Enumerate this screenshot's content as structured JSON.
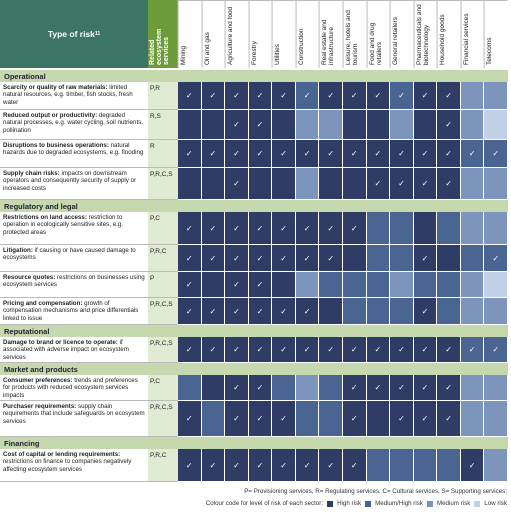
{
  "header": {
    "title": "Type of risk",
    "note": "11",
    "services": "Related ecosystem services",
    "sectors": [
      "Mining",
      "Oil and gas",
      "Agriculture and food",
      "Forestry",
      "Utilities",
      "Construction",
      "Real estate and infrastructure",
      "Leisure, hotels and tourism",
      "Food and drug retailers",
      "General retailers",
      "Pharmaceuticals and biotechnology",
      "Household goods",
      "Financial services",
      "Telecoms"
    ]
  },
  "sections": [
    {
      "name": "Operational",
      "rows": [
        {
          "title": "Scarcity or quality of raw materials:",
          "text": " limited natural resources, e.g. timber, fish stocks, fresh water",
          "services": "P,R",
          "colors": [
            "#2e3c66",
            "#2e3c66",
            "#2e3c66",
            "#2e3c66",
            "#2e3c66",
            "#4b6592",
            "#2e3c66",
            "#2e3c66",
            "#2e3c66",
            "#4b6592",
            "#2e3c66",
            "#2e3c66",
            "#7d95bc",
            "#7d95bc"
          ],
          "checks": [
            "✓",
            "✓",
            "✓",
            "✓",
            "✓",
            "✓",
            "✓",
            "✓",
            "✓",
            "✓",
            "✓",
            "✓",
            null,
            null
          ]
        },
        {
          "title": "Reduced output or productivity:",
          "text": " degraded natural processes, e.g. water cycling, soil nutrients, pollination",
          "services": "R,S",
          "colors": [
            "#2e3c66",
            "#2e3c66",
            "#2e3c66",
            "#2e3c66",
            "#2e3c66",
            "#7d95bc",
            "#7d95bc",
            "#2e3c66",
            "#2e3c66",
            "#7d95bc",
            "#2e3c66",
            "#2e3c66",
            "#7d95bc",
            "#c3d1e6"
          ],
          "checks": [
            null,
            null,
            "✓",
            "✓",
            null,
            null,
            null,
            null,
            null,
            null,
            null,
            "✓",
            null,
            null
          ]
        },
        {
          "title": "Disruptions to business operations:",
          "text": " natural hazards due to degraded ecosystems, e.g. flooding",
          "services": "R",
          "colors": [
            "#2e3c66",
            "#2e3c66",
            "#2e3c66",
            "#2e3c66",
            "#2e3c66",
            "#2e3c66",
            "#2e3c66",
            "#2e3c66",
            "#2e3c66",
            "#2e3c66",
            "#2e3c66",
            "#2e3c66",
            "#4b6592",
            "#4b6592"
          ],
          "checks": [
            "✓",
            "✓",
            "✓",
            "✓",
            "✓",
            "✓",
            "✓",
            "✓",
            "✓",
            "✓",
            "✓",
            "✓",
            "✓",
            "✓"
          ]
        },
        {
          "title": "Supply chain risks:",
          "text": " impacts on downstream operators and consequently security of supply or increased costs",
          "services": "P,R,C,S",
          "colors": [
            "#2e3c66",
            "#2e3c66",
            "#2e3c66",
            "#2e3c66",
            "#2e3c66",
            "#7d95bc",
            "#2e3c66",
            "#2e3c66",
            "#2e3c66",
            "#2e3c66",
            "#2e3c66",
            "#2e3c66",
            "#7d95bc",
            "#7d95bc"
          ],
          "checks": [
            null,
            null,
            "✓",
            null,
            null,
            null,
            null,
            null,
            "✓",
            "✓",
            "✓",
            "✓",
            null,
            null
          ]
        }
      ]
    },
    {
      "name": "Regulatory and legal",
      "rows": [
        {
          "title": "Restrictions on land access:",
          "text": " restriction to operation in ecologically sensitive sites, e.g. protected areas",
          "services": "P,C",
          "colors": [
            "#2e3c66",
            "#2e3c66",
            "#2e3c66",
            "#2e3c66",
            "#2e3c66",
            "#2e3c66",
            "#2e3c66",
            "#2e3c66",
            "#4b6592",
            "#4b6592",
            "#2e3c66",
            "#4b6592",
            "#7d95bc",
            "#7d95bc"
          ],
          "checks": [
            "✓",
            "✓",
            "✓",
            "✓",
            "✓",
            "✓",
            "✓",
            "✓",
            null,
            null,
            null,
            null,
            null,
            null
          ]
        },
        {
          "title": "Litigation:",
          "text": " if causing or have caused damage to ecosystems",
          "services": "P,R,C",
          "colors": [
            "#2e3c66",
            "#2e3c66",
            "#2e3c66",
            "#2e3c66",
            "#2e3c66",
            "#2e3c66",
            "#2e3c66",
            "#2e3c66",
            "#4b6592",
            "#4b6592",
            "#2e3c66",
            "#2e3c66",
            "#4b6592",
            "#4b6592"
          ],
          "checks": [
            "✓",
            "✓",
            "✓",
            "✓",
            "✓",
            "✓",
            "✓",
            null,
            null,
            null,
            "✓",
            null,
            null,
            "✓"
          ]
        },
        {
          "title": "Resource quotes:",
          "text": " restrictions on businesses using ecosystem services",
          "services": "P",
          "colors": [
            "#2e3c66",
            "#2e3c66",
            "#2e3c66",
            "#2e3c66",
            "#2e3c66",
            "#7d95bc",
            "#4b6592",
            "#4b6592",
            "#4b6592",
            "#7d95bc",
            "#4b6592",
            "#4b6592",
            "#7d95bc",
            "#c3d1e6"
          ],
          "checks": [
            "✓",
            null,
            "✓",
            "✓",
            null,
            null,
            null,
            null,
            null,
            null,
            null,
            null,
            null,
            null
          ]
        },
        {
          "title": "Pricing and compensation:",
          "text": " growth of compensation mechanisms and price differentials linked to issue",
          "services": "P,R,C,S",
          "colors": [
            "#2e3c66",
            "#2e3c66",
            "#2e3c66",
            "#2e3c66",
            "#2e3c66",
            "#2e3c66",
            "#2e3c66",
            "#4b6592",
            "#4b6592",
            "#4b6592",
            "#2e3c66",
            "#4b6592",
            "#7d95bc",
            "#7d95bc"
          ],
          "checks": [
            "✓",
            "✓",
            "✓",
            "✓",
            "✓",
            "✓",
            null,
            null,
            null,
            null,
            "✓",
            null,
            null,
            null
          ]
        }
      ]
    },
    {
      "name": "Reputational",
      "rows": [
        {
          "title": "Damage to brand or licence to operate:",
          "text": " if associated with adverse impact on ecosystem services",
          "services": "P,R,C,S",
          "colors": [
            "#2e3c66",
            "#2e3c66",
            "#2e3c66",
            "#2e3c66",
            "#2e3c66",
            "#2e3c66",
            "#2e3c66",
            "#2e3c66",
            "#2e3c66",
            "#2e3c66",
            "#2e3c66",
            "#2e3c66",
            "#4b6592",
            "#4b6592"
          ],
          "checks": [
            "✓",
            "✓",
            "✓",
            "✓",
            "✓",
            "✓",
            "✓",
            "✓",
            "✓",
            "✓",
            "✓",
            "✓",
            "✓",
            "✓"
          ]
        }
      ]
    },
    {
      "name": "Market and products",
      "rows": [
        {
          "title": "Consumer preferences:",
          "text": " trends and preferences for products with reduced ecosystem services impacts",
          "services": "P,C",
          "colors": [
            "#4b6592",
            "#2e3c66",
            "#2e3c66",
            "#2e3c66",
            "#4b6592",
            "#7d95bc",
            "#4b6592",
            "#2e3c66",
            "#2e3c66",
            "#2e3c66",
            "#2e3c66",
            "#2e3c66",
            "#7d95bc",
            "#7d95bc"
          ],
          "checks": [
            null,
            null,
            "✓",
            "✓",
            null,
            null,
            null,
            "✓",
            "✓",
            "✓",
            "✓",
            "✓",
            null,
            null
          ]
        },
        {
          "title": "Purchaser requirements:",
          "text": " supply chain requirements that include safeguards on ecosystem services",
          "services": "P,R,C,S",
          "colors": [
            "#2e3c66",
            "#4b6592",
            "#2e3c66",
            "#2e3c66",
            "#2e3c66",
            "#4b6592",
            "#4b6592",
            "#2e3c66",
            "#2e3c66",
            "#2e3c66",
            "#2e3c66",
            "#2e3c66",
            "#7d95bc",
            "#7d95bc"
          ],
          "checks": [
            "✓",
            null,
            "✓",
            "✓",
            "✓",
            null,
            null,
            "✓",
            null,
            "✓",
            "✓",
            "✓",
            null,
            null
          ]
        }
      ]
    },
    {
      "name": "Financing",
      "rows": [
        {
          "title": "Cost of capital or lending requirements:",
          "text": " restrictions on finance to companies negatively affecting ecosystem services",
          "services": "P,R,C",
          "colors": [
            "#2e3c66",
            "#2e3c66",
            "#2e3c66",
            "#2e3c66",
            "#2e3c66",
            "#2e3c66",
            "#2e3c66",
            "#2e3c66",
            "#4b6592",
            "#4b6592",
            "#4b6592",
            "#4b6592",
            "#2e3c66",
            "#7d95bc"
          ],
          "checks": [
            "✓",
            "✓",
            "✓",
            "✓",
            "✓",
            "✓",
            "✓",
            "✓",
            null,
            null,
            null,
            null,
            "✓",
            null
          ]
        }
      ]
    }
  ],
  "footer": {
    "key": "P= Provisioning services, R= Regulating services, C= Cultural services, S= Supporting services;",
    "legend_title": "Colour code for level of risk of each sector:",
    "legend": [
      {
        "label": "High risk",
        "color": "#2e3c66"
      },
      {
        "label": "Medium/High risk",
        "color": "#4b6592"
      },
      {
        "label": "Medium risk",
        "color": "#7d95bc"
      },
      {
        "label": "Low risk",
        "color": "#c3d1e6"
      }
    ]
  }
}
